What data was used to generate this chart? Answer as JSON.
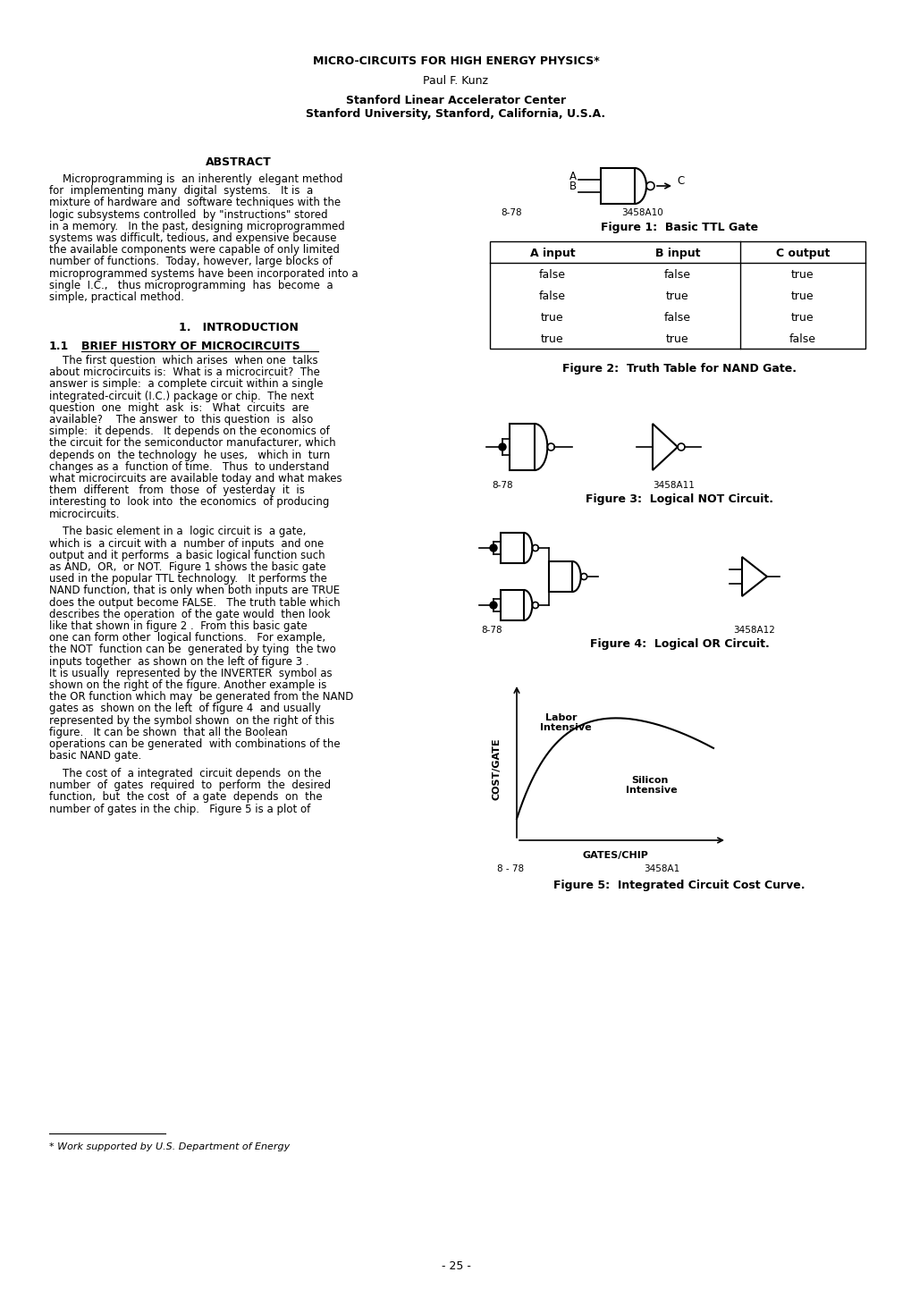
{
  "title": "MICRO-CIRCUITS FOR HIGH ENERGY PHYSICS*",
  "author": "Paul F. Kunz",
  "affil1": "Stanford Linear Accelerator Center",
  "affil2": "Stanford University, Stanford, California, U.S.A.",
  "abstract_head": "ABSTRACT",
  "abstract_lines": [
    "    Microprogramming is  an inherently  elegant method",
    "for  implementing many  digital  systems.   It is  a",
    "mixture of hardware and  software techniques with the",
    "logic subsystems controlled  by \"instructions\" stored",
    "in a memory.   In the past, designing microprogrammed",
    "systems was difficult, tedious, and expensive because",
    "the available components were capable of only limited",
    "number of functions.  Today, however, large blocks of",
    "microprogrammed systems have been incorporated into a",
    "single  I.C.,   thus microprogramming  has  become  a",
    "simple, practical method."
  ],
  "section1": "1.   INTRODUCTION",
  "para1_lines": [
    "    The first question  which arises  when one  talks",
    "about microcircuits is:  What is a microcircuit?  The",
    "answer is simple:  a complete circuit within a single",
    "integrated-circuit (I.C.) package or chip.  The next",
    "question  one  might  ask  is:   What  circuits  are",
    "available?    The answer  to  this question  is  also",
    "simple:  it depends.   It depends on the economics of",
    "the circuit for the semiconductor manufacturer, which",
    "depends on  the technology  he uses,   which in  turn",
    "changes as a  function of time.   Thus  to understand",
    "what microcircuits are available today and what makes",
    "them  different   from  those  of  yesterday  it  is",
    "interesting to  look into  the economics  of producing",
    "microcircuits."
  ],
  "para2_lines": [
    "    The basic element in a  logic circuit is  a gate,",
    "which is  a circuit with a  number of inputs  and one",
    "output and it performs  a basic logical function such",
    "as AND,  OR,  or NOT.  Figure 1 shows the basic gate",
    "used in the popular TTL technology.   It performs the",
    "NAND function, that is only when both inputs are TRUE",
    "does the output become FALSE.   The truth table which",
    "describes the operation  of the gate would  then look",
    "like that shown in figure 2 .  From this basic gate",
    "one can form other  logical functions.   For example,",
    "the NOT  function can be  generated by tying  the two",
    "inputs together  as shown on the left of figure 3 .",
    "It is usually  represented by the INVERTER  symbol as",
    "shown on the right of the figure. Another example is",
    "the OR function which may  be generated from the NAND",
    "gates as  shown on the left  of figure 4  and usually",
    "represented by the symbol shown  on the right of this",
    "figure.   It can be shown  that all the Boolean",
    "operations can be generated  with combinations of the",
    "basic NAND gate."
  ],
  "para3_lines": [
    "    The cost of  a integrated  circuit depends  on the",
    "number  of  gates  required  to  perform  the  desired",
    "function,  but  the cost  of  a gate  depends  on  the",
    "number of gates in the chip.   Figure 5 is a plot of"
  ],
  "fig1_caption": "Figure 1:  Basic TTL Gate",
  "fig2_caption": "Figure 2:  Truth Table for NAND Gate.",
  "fig3_caption": "Figure 3:  Logical NOT Circuit.",
  "fig4_caption": "Figure 4:  Logical OR Circuit.",
  "fig5_caption": "Figure 5:  Integrated Circuit Cost Curve.",
  "truth_table": [
    [
      "A input",
      "B input",
      "C output"
    ],
    [
      "false",
      "false",
      "true"
    ],
    [
      "false",
      "true",
      "true"
    ],
    [
      "true",
      "false",
      "true"
    ],
    [
      "true",
      "true",
      "false"
    ]
  ],
  "footnote": "* Work supported by U.S. Department of Energy",
  "page_num": "- 25 -"
}
